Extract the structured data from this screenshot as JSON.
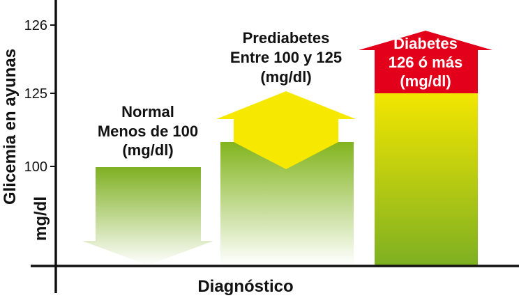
{
  "chart_data": {
    "type": "bar",
    "title": "",
    "xlabel": "Diagnóstico",
    "ylabel_lines": [
      "Glicemia en ayunas",
      "mg/dl"
    ],
    "y_ticks": [
      "100",
      "125",
      "126"
    ],
    "categories": [
      {
        "label_lines": [
          "Normal",
          "Menos de 100",
          "(mg/dl)"
        ],
        "range_low": null,
        "range_high": 100,
        "arrow": "down",
        "colors": {
          "top": "#7fb022",
          "bottom": "#ffffff"
        }
      },
      {
        "label_lines": [
          "Prediabetes",
          "Entre 100 y 125",
          "(mg/dl)"
        ],
        "range_low": 100,
        "range_high": 125,
        "arrow": "both",
        "colors": {
          "band": "#f7e800",
          "lower_top": "#82b41e",
          "lower_bottom": "#ffffff"
        }
      },
      {
        "label_lines": [
          "Diabetes",
          "126 ó más",
          "(mg/dl)"
        ],
        "range_low": 126,
        "range_high": null,
        "arrow": "up",
        "colors": {
          "head": "#e2001a",
          "body_top": "#f3e600",
          "body_bottom": "#7eb022"
        }
      }
    ],
    "grid": false,
    "legend": "none"
  }
}
